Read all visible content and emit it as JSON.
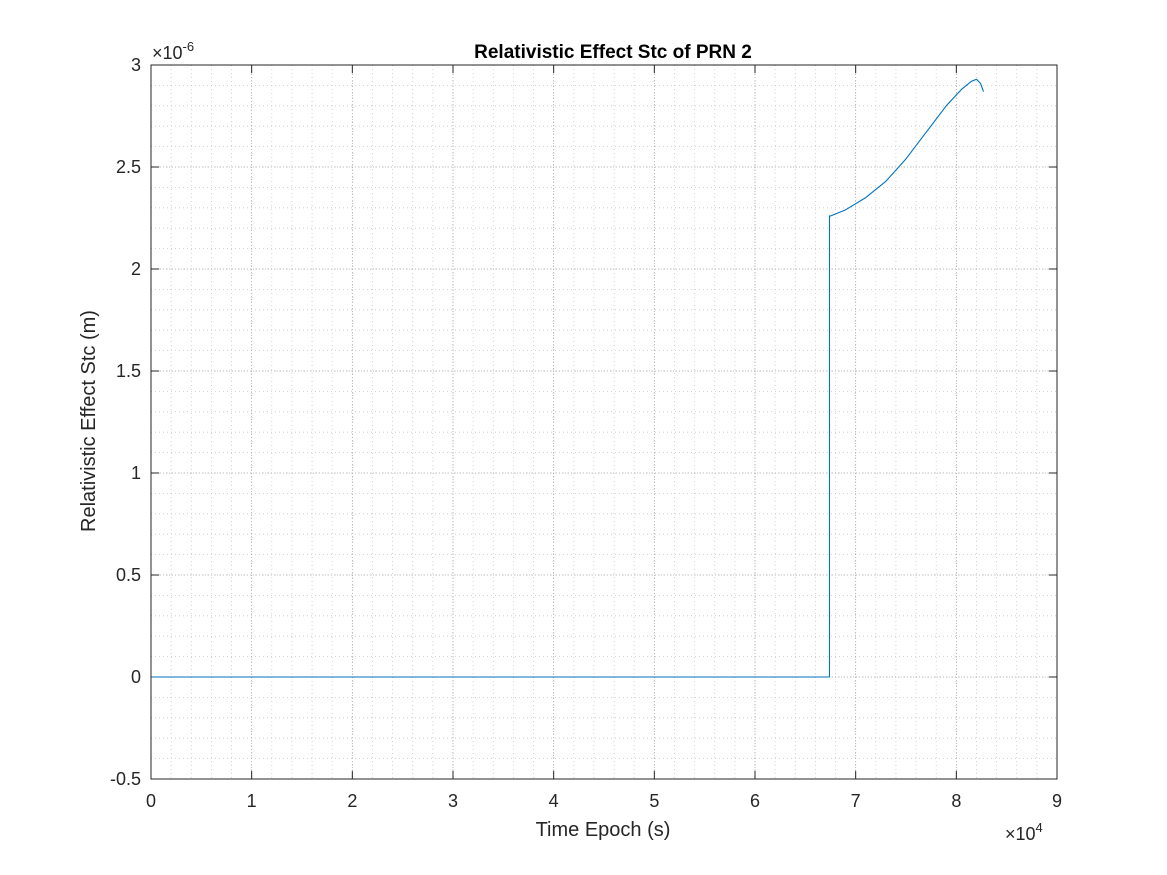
{
  "chart_data": {
    "type": "line",
    "title": "Relativistic Effect Stc of PRN 2",
    "xlabel": "Time Epoch (s)",
    "ylabel": "Relativistic Effect Stc (m)",
    "xlim": [
      0,
      90000
    ],
    "ylim": [
      -5e-07,
      3e-06
    ],
    "x_ticks": [
      0,
      10000,
      20000,
      30000,
      40000,
      50000,
      60000,
      70000,
      80000,
      90000
    ],
    "x_tick_labels": [
      "0",
      "1",
      "2",
      "3",
      "4",
      "5",
      "6",
      "7",
      "8",
      "9"
    ],
    "x_multiplier": "×10",
    "x_multiplier_exp": "4",
    "y_ticks": [
      -5e-07,
      0,
      5e-07,
      1e-06,
      1.5e-06,
      2e-06,
      2.5e-06,
      3e-06
    ],
    "y_tick_labels": [
      "-0.5",
      "0",
      "0.5",
      "1",
      "1.5",
      "2",
      "2.5",
      "3"
    ],
    "y_multiplier": "×10",
    "y_multiplier_exp": "-6",
    "grid": true,
    "minor_grid": true,
    "series": [
      {
        "color": "#0072BD",
        "x": [
          0,
          67400,
          67400,
          67500,
          69000,
          71000,
          73000,
          75000,
          77000,
          79000,
          80500,
          81500,
          82000,
          82400,
          82700
        ],
        "y": [
          0,
          0,
          2.26e-06,
          2.26e-06,
          2.29e-06,
          2.35e-06,
          2.43e-06,
          2.54e-06,
          2.67e-06,
          2.8e-06,
          2.88e-06,
          2.92e-06,
          2.93e-06,
          2.91e-06,
          2.87e-06
        ]
      }
    ]
  }
}
